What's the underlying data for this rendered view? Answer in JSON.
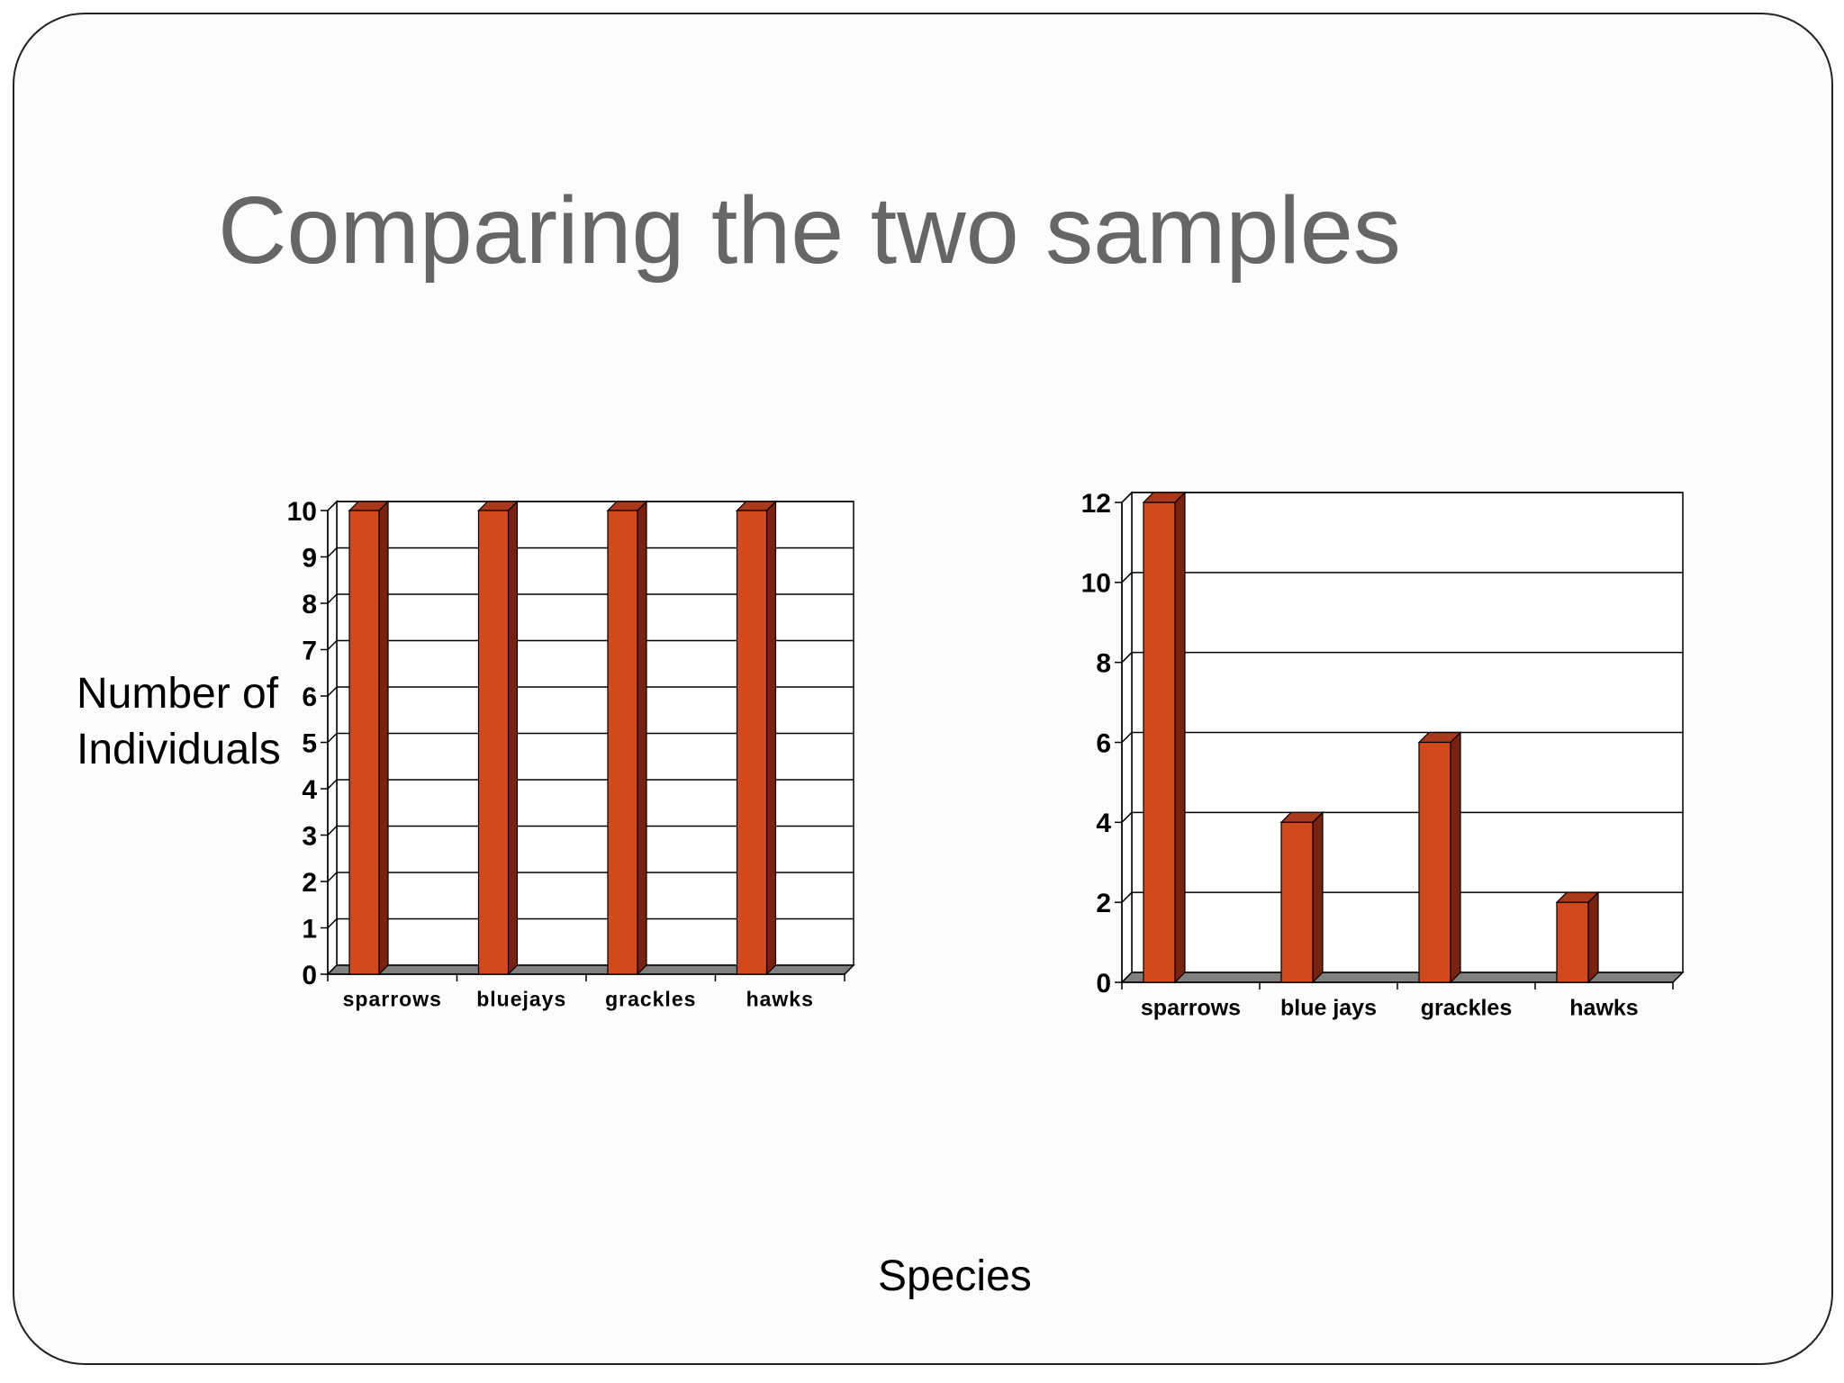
{
  "slide": {
    "title": "Comparing the two samples",
    "y_axis_label_line1": "Number of",
    "y_axis_label_line2": "Individuals",
    "x_axis_label": "Species"
  },
  "colors": {
    "bar_front": "#d2491c",
    "bar_side": "#7a2210",
    "bar_top": "#a8391a",
    "floor": "#808080",
    "title": "#666666"
  },
  "chart_data": [
    {
      "type": "bar",
      "categories": [
        "sparrows",
        "bluejays",
        "grackles",
        "hawks"
      ],
      "values": [
        10,
        10,
        10,
        10
      ],
      "ylim": [
        0,
        10
      ],
      "yticks": [
        0,
        1,
        2,
        3,
        4,
        5,
        6,
        7,
        8,
        9,
        10
      ],
      "grid": true,
      "style": "3d-bar"
    },
    {
      "type": "bar",
      "categories": [
        "sparrows",
        "blue jays",
        "grackles",
        "hawks"
      ],
      "values": [
        12,
        4,
        6,
        2
      ],
      "ylim": [
        0,
        12
      ],
      "yticks": [
        0,
        2,
        4,
        6,
        8,
        10,
        12
      ],
      "grid": true,
      "style": "3d-bar"
    }
  ]
}
